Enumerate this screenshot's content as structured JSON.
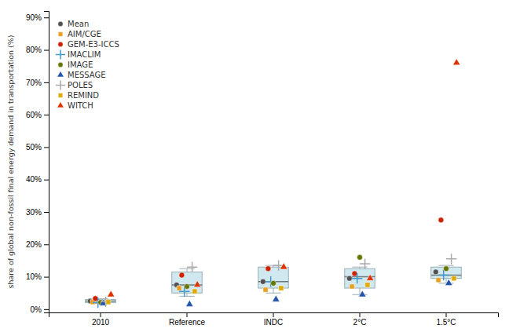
{
  "chart_data": {
    "type": "box",
    "categories": [
      "2010",
      "Reference",
      "INDC",
      "2°C",
      "1.5°C"
    ],
    "ylabel": "share of global non-fossil final energy demand in transportation (%)",
    "ylim": [
      -1,
      92
    ],
    "yticks": [
      {
        "value": 0,
        "label": "0%"
      },
      {
        "value": 10,
        "label": "10%"
      },
      {
        "value": 20,
        "label": "20%"
      },
      {
        "value": 30,
        "label": "30%"
      },
      {
        "value": 40,
        "label": "40%"
      },
      {
        "value": 50,
        "label": "50%"
      },
      {
        "value": 60,
        "label": "60%"
      },
      {
        "value": 70,
        "label": "70%"
      },
      {
        "value": 80,
        "label": "80%"
      },
      {
        "value": 90,
        "label": "90%"
      }
    ],
    "grid": false,
    "legend": "upper left",
    "color": "#d0e8f0",
    "boxes": [
      {
        "q1": 2.0,
        "median": 2.5,
        "q3": 3.0,
        "whisker_low": 1.8,
        "whisker_high": 3.2
      },
      {
        "q1": 5.0,
        "median": 7.5,
        "q3": 11.5,
        "whisker_low": 4.0,
        "whisker_high": 12.5
      },
      {
        "q1": 6.5,
        "median": 8.5,
        "q3": 13.0,
        "whisker_low": 5.0,
        "whisker_high": 13.5
      },
      {
        "q1": 6.5,
        "median": 10.0,
        "q3": 12.5,
        "whisker_low": 4.5,
        "whisker_high": 13.0
      },
      {
        "q1": 9.5,
        "median": 10.5,
        "q3": 13.0,
        "whisker_low": 8.0,
        "whisker_high": 13.5
      }
    ],
    "series": [
      {
        "name": "Mean",
        "color": "#505050",
        "marker": "circle",
        "values": [
          2.5,
          7.5,
          8.5,
          9.5,
          11.5
        ]
      },
      {
        "name": "AIM/CGE",
        "color": "#E8A020",
        "marker": "square",
        "values": [
          2.2,
          6.5,
          6.0,
          7.0,
          9.0
        ]
      },
      {
        "name": "GEM-E3-ICCS",
        "color": "#CC2200",
        "marker": "circle",
        "values": [
          3.3,
          10.5,
          12.5,
          11.0,
          27.5
        ]
      },
      {
        "name": "IMACLIM",
        "color": "#4499CC",
        "marker": "plus",
        "values": [
          2.0,
          5.5,
          8.5,
          9.5,
          10.5
        ]
      },
      {
        "name": "IMAGE",
        "color": "#667700",
        "marker": "circle",
        "values": [
          2.1,
          7.0,
          8.0,
          16.0,
          12.5
        ]
      },
      {
        "name": "MESSAGE",
        "color": "#2255AA",
        "marker": "triangle",
        "values": [
          1.8,
          1.5,
          3.0,
          4.5,
          8.0
        ]
      },
      {
        "name": "POLES",
        "color": "#AAAAAA",
        "marker": "plus",
        "values": [
          2.3,
          13.0,
          13.5,
          14.0,
          15.5
        ]
      },
      {
        "name": "REMIND",
        "color": "#DDAA00",
        "marker": "square",
        "values": [
          2.2,
          5.5,
          6.5,
          7.5,
          9.5
        ]
      },
      {
        "name": "WITCH",
        "color": "#DD3300",
        "marker": "triangle",
        "values": [
          4.5,
          7.5,
          13.0,
          9.5,
          76.0
        ]
      }
    ]
  }
}
